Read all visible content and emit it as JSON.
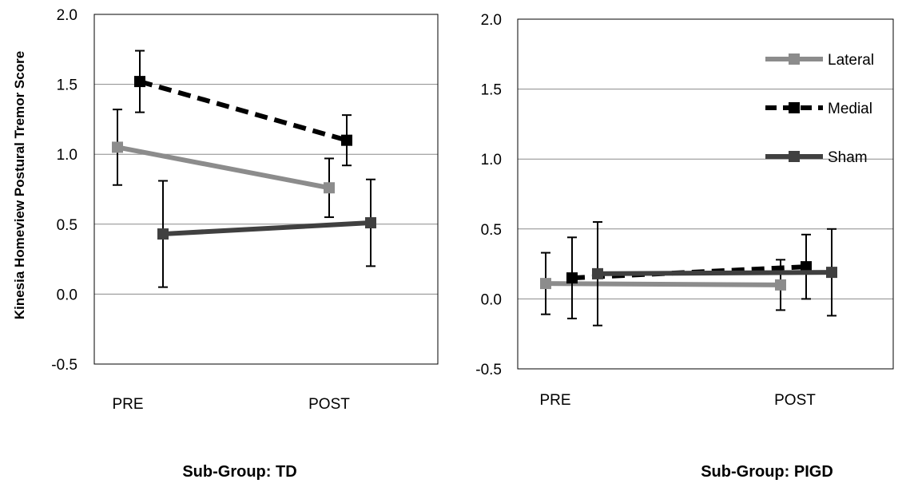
{
  "ylabel": "Kinesia Homeview Postural Tremor Score",
  "legend": [
    {
      "name": "Lateral",
      "color": "#8c8c8c",
      "dash": false
    },
    {
      "name": "Medial",
      "color": "#000000",
      "dash": true
    },
    {
      "name": "Sham",
      "color": "#404040",
      "dash": false
    }
  ],
  "chart_data": [
    {
      "type": "line",
      "title": "Sub-Group: TD",
      "xlabel": "",
      "ylabel": "Kinesia Homeview Postural Tremor Score",
      "categories": [
        "PRE",
        "POST"
      ],
      "ylim": [
        -0.5,
        2.0
      ],
      "yticks": [
        "2.0",
        "1.5",
        "1.0",
        "0.5",
        "0.0",
        "-0.5"
      ],
      "grid": true,
      "legend": "none",
      "series": [
        {
          "name": "Lateral",
          "values": [
            1.05,
            0.76
          ],
          "error": [
            0.27,
            0.21
          ],
          "color": "#8c8c8c",
          "dashed": false
        },
        {
          "name": "Medial",
          "values": [
            1.52,
            1.1
          ],
          "error": [
            0.22,
            0.18
          ],
          "color": "#000000",
          "dashed": true
        },
        {
          "name": "Sham",
          "values": [
            0.43,
            0.51
          ],
          "error": [
            0.38,
            0.31
          ],
          "color": "#404040",
          "dashed": false
        }
      ]
    },
    {
      "type": "line",
      "title": "Sub-Group: PIGD",
      "xlabel": "",
      "ylabel": "",
      "categories": [
        "PRE",
        "POST"
      ],
      "ylim": [
        -0.5,
        2.0
      ],
      "yticks": [
        "2.0",
        "1.5",
        "1.0",
        "0.5",
        "0.0",
        "-0.5"
      ],
      "grid": true,
      "legend": "top-right",
      "series": [
        {
          "name": "Lateral",
          "values": [
            0.11,
            0.1
          ],
          "error": [
            0.22,
            0.18
          ],
          "color": "#8c8c8c",
          "dashed": false
        },
        {
          "name": "Medial",
          "values": [
            0.15,
            0.23
          ],
          "error": [
            0.29,
            0.23
          ],
          "color": "#000000",
          "dashed": true
        },
        {
          "name": "Sham",
          "values": [
            0.18,
            0.19
          ],
          "error": [
            0.37,
            0.31
          ],
          "color": "#404040",
          "dashed": false
        }
      ]
    }
  ]
}
